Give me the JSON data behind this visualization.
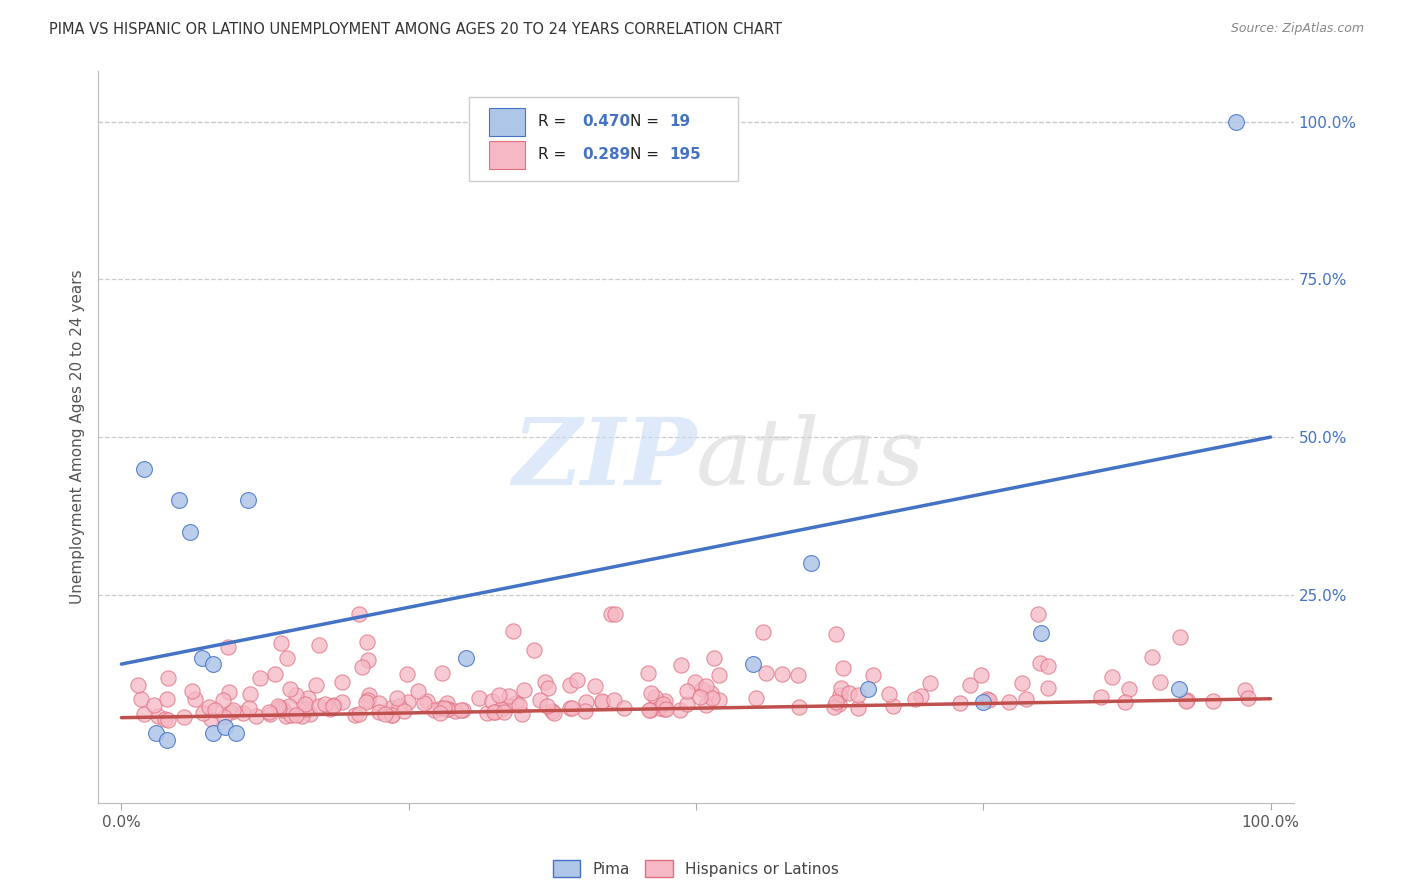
{
  "title": "PIMA VS HISPANIC OR LATINO UNEMPLOYMENT AMONG AGES 20 TO 24 YEARS CORRELATION CHART",
  "source": "Source: ZipAtlas.com",
  "ylabel": "Unemployment Among Ages 20 to 24 years",
  "xlim": [
    -0.02,
    1.02
  ],
  "ylim": [
    -0.08,
    1.08
  ],
  "pima_R": 0.47,
  "pima_N": 19,
  "hispanic_R": 0.289,
  "hispanic_N": 195,
  "pima_color": "#aec6e8",
  "pima_edge_color": "#4472c4",
  "hispanic_color": "#f5b8c4",
  "hispanic_edge_color": "#e07080",
  "pima_line_color": "#4472c4",
  "hispanic_line_color": "#c0504d",
  "grid_color": "#cccccc",
  "tick_color": "#555555",
  "right_tick_color": "#4472c4",
  "title_color": "#333333",
  "source_color": "#888888",
  "ylabel_color": "#555555",
  "pima_x": [
    0.02,
    0.03,
    0.04,
    0.05,
    0.06,
    0.07,
    0.08,
    0.08,
    0.09,
    0.1,
    0.11,
    0.3,
    0.55,
    0.6,
    0.65,
    0.75,
    0.8,
    0.92,
    0.97
  ],
  "pima_y": [
    0.45,
    0.03,
    0.02,
    0.4,
    0.35,
    0.15,
    0.14,
    0.03,
    0.04,
    0.03,
    0.4,
    0.15,
    0.14,
    0.3,
    0.1,
    0.08,
    0.19,
    0.1,
    1.0
  ],
  "pima_trend_x": [
    0.0,
    1.0
  ],
  "pima_trend_y": [
    0.14,
    0.5
  ],
  "hispanic_trend_x": [
    0.0,
    1.0
  ],
  "hispanic_trend_y": [
    0.055,
    0.085
  ],
  "bottom_legend_labels": [
    "Pima",
    "Hispanics or Latinos"
  ]
}
